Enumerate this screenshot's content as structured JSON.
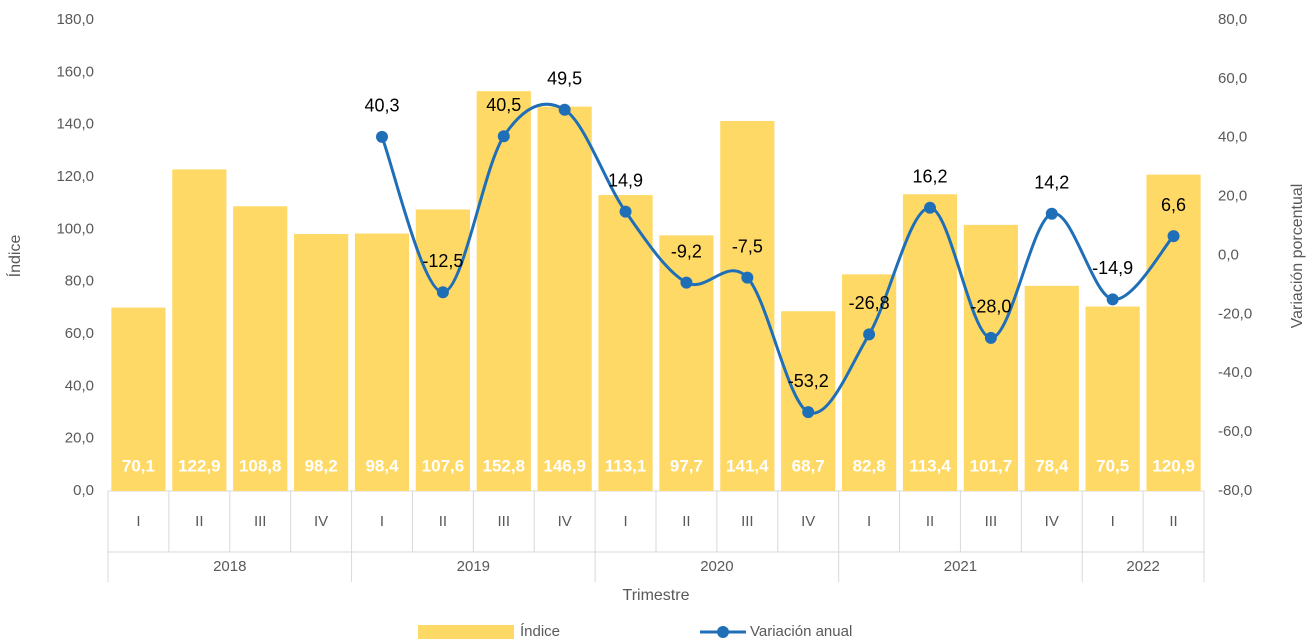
{
  "chart_data": {
    "type": "bar_line",
    "x_label": "Trimestre",
    "y_label": "Índice",
    "y2_label": "Variación porcentual",
    "categories": [
      "I",
      "II",
      "III",
      "IV",
      "I",
      "II",
      "III",
      "IV",
      "I",
      "II",
      "III",
      "IV",
      "I",
      "II",
      "III",
      "IV",
      "I",
      "II"
    ],
    "groups": [
      "2018",
      "2019",
      "2020",
      "2021",
      "2022"
    ],
    "series": [
      {
        "name": "Índice",
        "type": "bar",
        "color": "#FFD966",
        "values": [
          70.1,
          122.9,
          108.8,
          98.2,
          98.4,
          107.6,
          152.8,
          146.9,
          113.1,
          97.7,
          141.4,
          68.7,
          82.8,
          113.4,
          101.7,
          78.4,
          70.5,
          120.9
        ],
        "value_labels": [
          "70,1",
          "122,9",
          "108,8",
          "98,2",
          "98,4",
          "107,6",
          "152,8",
          "146,9",
          "113,1",
          "97,7",
          "141,4",
          "68,7",
          "82,8",
          "113,4",
          "101,7",
          "78,4",
          "70,5",
          "120,9"
        ]
      },
      {
        "name": "Variación anual",
        "type": "line",
        "axis": "y2",
        "color": "#1F6FB8",
        "values": [
          null,
          null,
          null,
          null,
          40.3,
          -12.5,
          40.5,
          49.5,
          14.9,
          -9.2,
          -7.5,
          -53.2,
          -26.8,
          16.2,
          -28.0,
          14.2,
          -14.9,
          6.6
        ],
        "value_labels": [
          null,
          null,
          null,
          null,
          "40,3",
          "-12,5",
          "40,5",
          "49,5",
          "14,9",
          "-9,2",
          "-7,5",
          "-53,2",
          "-26,8",
          "16,2",
          "-28,0",
          "14,2",
          "-14,9",
          "6,6"
        ]
      }
    ],
    "ylim": [
      0,
      180
    ],
    "yticks": [
      {
        "value": 0,
        "label": "0,0"
      },
      {
        "value": 20,
        "label": "20,0"
      },
      {
        "value": 40,
        "label": "40,0"
      },
      {
        "value": 60,
        "label": "60,0"
      },
      {
        "value": 80,
        "label": "80,0"
      },
      {
        "value": 100,
        "label": "100,0"
      },
      {
        "value": 120,
        "label": "120,0"
      },
      {
        "value": 140,
        "label": "140,0"
      },
      {
        "value": 160,
        "label": "160,0"
      },
      {
        "value": 180,
        "label": "180,0"
      }
    ],
    "y2lim": [
      -80,
      80
    ],
    "y2ticks": [
      {
        "value": -80,
        "label": "-80,0"
      },
      {
        "value": -60,
        "label": "-60,0"
      },
      {
        "value": -40,
        "label": "-40,0"
      },
      {
        "value": -20,
        "label": "-20,0"
      },
      {
        "value": 0,
        "label": "0,0"
      },
      {
        "value": 20,
        "label": "20,0"
      },
      {
        "value": 40,
        "label": "40,0"
      },
      {
        "value": 60,
        "label": "60,0"
      },
      {
        "value": 80,
        "label": "80,0"
      }
    ],
    "grid": false,
    "legend": "bottom"
  }
}
